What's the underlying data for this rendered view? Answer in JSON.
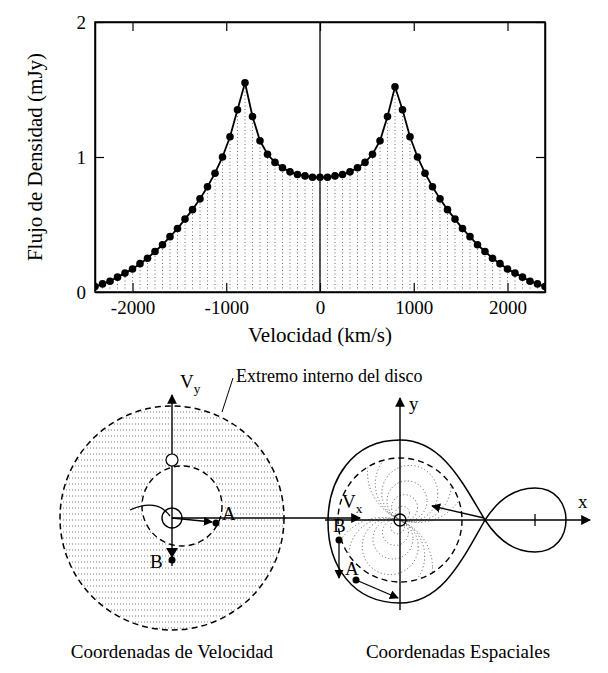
{
  "chart_data": {
    "type": "line",
    "x_label": "Velocidad (km/s)",
    "y_label": "Flujo de Densidad (mJy)",
    "x": [
      -2400,
      -2320,
      -2240,
      -2160,
      -2080,
      -2000,
      -1920,
      -1840,
      -1760,
      -1680,
      -1600,
      -1520,
      -1440,
      -1360,
      -1280,
      -1200,
      -1120,
      -1040,
      -960,
      -880,
      -800,
      -720,
      -640,
      -560,
      -480,
      -400,
      -320,
      -240,
      -160,
      -80,
      0,
      80,
      160,
      240,
      320,
      400,
      480,
      560,
      640,
      720,
      800,
      880,
      960,
      1040,
      1120,
      1200,
      1280,
      1360,
      1440,
      1520,
      1600,
      1680,
      1760,
      1840,
      1920,
      2000,
      2080,
      2160,
      2240,
      2320,
      2400
    ],
    "values": [
      0.04,
      0.06,
      0.08,
      0.11,
      0.14,
      0.17,
      0.21,
      0.25,
      0.3,
      0.35,
      0.41,
      0.47,
      0.54,
      0.61,
      0.69,
      0.78,
      0.88,
      1.0,
      1.15,
      1.35,
      1.55,
      1.3,
      1.12,
      1.02,
      0.96,
      0.92,
      0.89,
      0.87,
      0.86,
      0.85,
      0.85,
      0.85,
      0.86,
      0.87,
      0.89,
      0.92,
      0.96,
      1.02,
      1.12,
      1.3,
      1.52,
      1.35,
      1.15,
      1.0,
      0.88,
      0.78,
      0.69,
      0.61,
      0.54,
      0.47,
      0.41,
      0.35,
      0.3,
      0.25,
      0.21,
      0.17,
      0.14,
      0.11,
      0.08,
      0.06,
      0.04
    ],
    "color": "#000000",
    "marker": "circle",
    "line_style": "solid",
    "xlim": [
      -2400,
      2400
    ],
    "ylim": [
      0,
      2
    ],
    "xticks": [
      -2000,
      -1000,
      0,
      1000,
      2000
    ],
    "yticks": [
      0,
      1,
      2
    ]
  },
  "diagrams": [
    {
      "caption": "Coordenadas de Velocidad",
      "annotation": "Extremo interno del disco",
      "axis_x": {
        "base": "V",
        "subscript": "x"
      },
      "axis_y": {
        "base": "V",
        "subscript": "y"
      },
      "points": [
        "A",
        "B"
      ]
    },
    {
      "caption": "Coordenadas Espaciales",
      "axis_x": "x",
      "axis_y": "y",
      "points": [
        "A",
        "B"
      ]
    }
  ]
}
